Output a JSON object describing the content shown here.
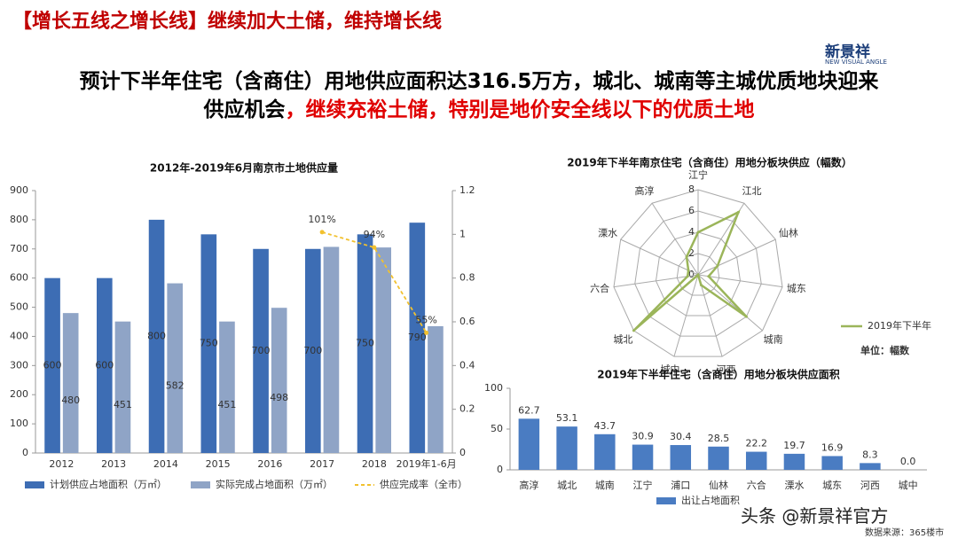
{
  "header": {
    "title": "【增长五线之增长线】继续加大土储，维持增长线",
    "logo": "新景祥",
    "logo_sub": "NEW VISUAL ANGLE",
    "subtitle_line1": "预计下半年住宅（含商住）用地供应面积达316.5万方，城北、城南等主城优质地块迎来",
    "subtitle_line2": "供应机会",
    "subtitle_line2_highlight": "，继续充裕土储，特别是地价安全线以下的优质土地"
  },
  "footer": {
    "watermark": "头条 @新景祥官方",
    "source": "数据来源：365楼市"
  },
  "chart_data": [
    {
      "type": "bar",
      "title": "2012年-2019年6月南京市土地供应量",
      "categories": [
        "2012",
        "2013",
        "2014",
        "2015",
        "2016",
        "2017",
        "2018",
        "2019年1-6月"
      ],
      "series": [
        {
          "name": "计划供应占地面积（万㎡）",
          "color": "#3d6db4",
          "values": [
            600,
            600,
            800,
            750,
            700,
            700,
            750,
            790
          ]
        },
        {
          "name": "实际完成占地面积（万㎡）",
          "color": "#8fa4c6",
          "values": [
            480,
            451,
            582,
            451,
            498,
            707,
            705,
            435
          ],
          "value_labels": [
            "480",
            "451",
            "582",
            "451",
            "498",
            null,
            null,
            null
          ]
        },
        {
          "name": "供应完成率（全市）",
          "color": "#f2c12e",
          "type": "line",
          "axis": "y2",
          "values": [
            null,
            null,
            null,
            null,
            null,
            1.01,
            0.94,
            0.55
          ],
          "value_labels": [
            null,
            null,
            null,
            null,
            null,
            "101%",
            "94%",
            "55%"
          ]
        }
      ],
      "ylim": [
        0,
        900
      ],
      "yticks": [
        0,
        100,
        200,
        300,
        400,
        500,
        600,
        700,
        800,
        900
      ],
      "y2lim": [
        0,
        1.2
      ],
      "y2ticks": [
        0,
        0.2,
        0.4,
        0.6,
        0.8,
        1,
        1.2
      ],
      "grid": false
    },
    {
      "type": "radar",
      "title": "2019年下半年南京住宅（含商住）用地分板块供应（幅数）",
      "categories": [
        "江宁",
        "江北",
        "仙林",
        "城东",
        "城南",
        "河西",
        "城中",
        "城北",
        "六合",
        "溧水",
        "高淳"
      ],
      "series": [
        {
          "name": "2019年下半年",
          "color": "#9bb55a",
          "values": [
            4,
            7,
            2,
            1,
            6,
            1,
            0,
            8,
            1,
            1,
            2
          ]
        }
      ],
      "rlim": [
        0,
        8
      ],
      "rticks": [
        0,
        2,
        4,
        6,
        8
      ],
      "note": "单位：幅数"
    },
    {
      "type": "bar",
      "title": "2019年下半年住宅（含商住）用地分板块供应面积",
      "categories": [
        "高淳",
        "城北",
        "城南",
        "江宁",
        "浦口",
        "仙林",
        "六合",
        "溧水",
        "城东",
        "河西",
        "城中"
      ],
      "series": [
        {
          "name": "出让占地面积",
          "color": "#4a7cc2",
          "values": [
            62.7,
            53.1,
            43.7,
            30.9,
            30.4,
            28.5,
            22.2,
            19.7,
            16.9,
            8.3,
            0.0
          ],
          "value_labels": [
            "62.7",
            "53.1",
            "43.7",
            "30.9",
            "30.4",
            "28.5",
            "22.2",
            "19.7",
            "16.9",
            "8.3",
            "0.0"
          ]
        }
      ],
      "ylim": [
        0,
        100
      ],
      "yticks": [
        0,
        50,
        100
      ],
      "grid": false
    }
  ]
}
